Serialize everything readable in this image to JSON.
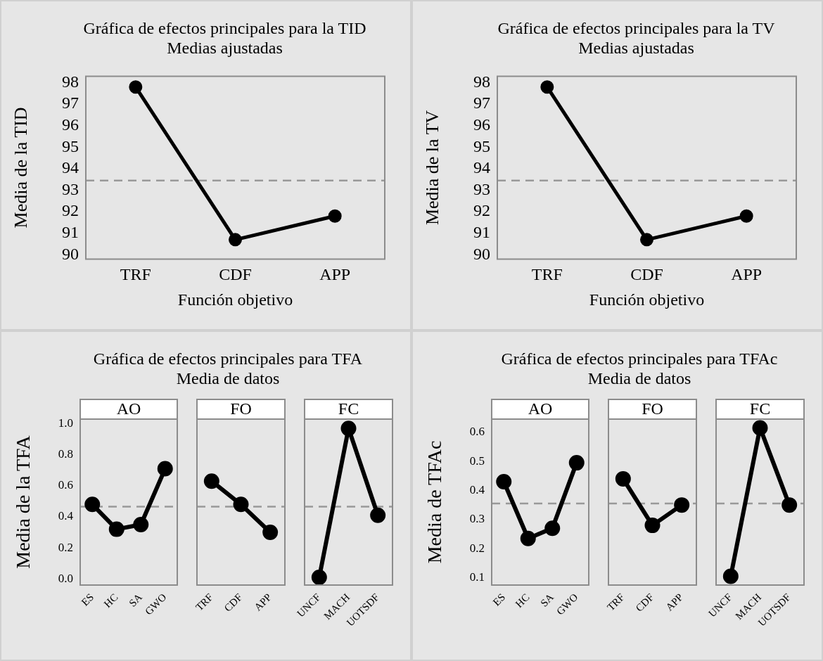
{
  "chart_data": [
    {
      "type": "line",
      "title": "Gráfica de efectos principales para la TID",
      "subtitle": "Medias ajustadas",
      "xlabel": "Función objetivo",
      "ylabel": "Media de la TID",
      "categories": [
        "TRF",
        "CDF",
        "APP"
      ],
      "series": [
        {
          "color": "#000000",
          "values": [
            97.8,
            90.7,
            91.8
          ]
        }
      ],
      "ylim": [
        89.8,
        98.3
      ],
      "yticks": [
        90,
        91,
        92,
        93,
        94,
        95,
        96,
        97,
        98
      ],
      "ref_lines": [
        {
          "axis": "y",
          "value": 93.45,
          "color": "#999999",
          "line_style": "dashed"
        }
      ],
      "grid": false,
      "legend": false,
      "marker": "circle",
      "line_style": "solid"
    },
    {
      "type": "line",
      "title": "Gráfica de efectos principales para la TV",
      "subtitle": "Medias ajustadas",
      "xlabel": "Función objetivo",
      "ylabel": "Media de la TV",
      "categories": [
        "TRF",
        "CDF",
        "APP"
      ],
      "series": [
        {
          "color": "#000000",
          "values": [
            97.8,
            90.7,
            91.8
          ]
        }
      ],
      "ylim": [
        89.8,
        98.3
      ],
      "yticks": [
        90,
        91,
        92,
        93,
        94,
        95,
        96,
        97,
        98
      ],
      "ref_lines": [
        {
          "axis": "y",
          "value": 93.45,
          "color": "#999999",
          "line_style": "dashed"
        }
      ],
      "grid": false,
      "legend": false,
      "marker": "circle",
      "line_style": "solid"
    },
    {
      "type": "line",
      "x2label": "AO",
      "ylabel": "Media de la TFA",
      "categories": [
        "ES",
        "HC",
        "SA",
        "GWO"
      ],
      "series": [
        {
          "color": "#000000",
          "values": [
            0.48,
            0.32,
            0.35,
            0.71
          ]
        }
      ],
      "ylim": [
        -0.04,
        1.03
      ],
      "yticks": [
        {
          "value": 0,
          "label": "0.0"
        },
        0.2,
        0.4,
        0.6,
        0.8,
        {
          "value": 1,
          "label": "1.0"
        }
      ],
      "ref_lines": [
        {
          "axis": "y",
          "value": 0.465,
          "color": "#999999",
          "line_style": "dashed"
        }
      ],
      "grid": false,
      "legend": false,
      "marker": "circle",
      "line_style": "solid"
    },
    {
      "type": "line",
      "title": "Gráfica de efectos principales para TFA",
      "subtitle": "Media de datos",
      "x2label": "FO",
      "categories": [
        "TRF",
        "CDF",
        "APP"
      ],
      "series": [
        {
          "color": "#000000",
          "values": [
            0.63,
            0.48,
            0.3
          ]
        }
      ],
      "ylim": [
        -0.04,
        1.03
      ],
      "ref_lines": [
        {
          "axis": "y",
          "value": 0.465,
          "color": "#999999",
          "line_style": "dashed"
        }
      ],
      "grid": false,
      "legend": false,
      "marker": "circle",
      "line_style": "solid",
      "tick_labels": "x"
    },
    {
      "type": "line",
      "x2label": "FC",
      "categories": [
        "UNCF",
        "MACH",
        "UOTSDF"
      ],
      "series": [
        {
          "color": "#000000",
          "values": [
            0.01,
            0.97,
            0.41
          ]
        }
      ],
      "ylim": [
        -0.04,
        1.03
      ],
      "ref_lines": [
        {
          "axis": "y",
          "value": 0.465,
          "color": "#999999",
          "line_style": "dashed"
        }
      ],
      "grid": false,
      "legend": false,
      "marker": "circle",
      "line_style": "solid",
      "tick_labels": "x"
    },
    {
      "type": "line",
      "x2label": "AO",
      "ylabel": "Media de TFAc",
      "categories": [
        "ES",
        "HC",
        "SA",
        "GWO"
      ],
      "series": [
        {
          "color": "#000000",
          "values": [
            0.43,
            0.235,
            0.27,
            0.495
          ]
        }
      ],
      "ylim": [
        0.075,
        0.645
      ],
      "yticks": [
        0.1,
        0.2,
        0.3,
        0.4,
        0.5,
        0.6
      ],
      "ref_lines": [
        {
          "axis": "y",
          "value": 0.355,
          "color": "#999999",
          "line_style": "dashed"
        }
      ],
      "grid": false,
      "legend": false,
      "marker": "circle",
      "line_style": "solid"
    },
    {
      "type": "line",
      "title": "Gráfica de efectos principales para TFAc",
      "subtitle": "Media de datos",
      "x2label": "FO",
      "categories": [
        "TRF",
        "CDF",
        "APP"
      ],
      "series": [
        {
          "color": "#000000",
          "values": [
            0.44,
            0.28,
            0.35
          ]
        }
      ],
      "ylim": [
        0.075,
        0.645
      ],
      "ref_lines": [
        {
          "axis": "y",
          "value": 0.355,
          "color": "#999999",
          "line_style": "dashed"
        }
      ],
      "grid": false,
      "legend": false,
      "marker": "circle",
      "line_style": "solid",
      "tick_labels": "x"
    },
    {
      "type": "line",
      "x2label": "FC",
      "categories": [
        "UNCF",
        "MACH",
        "UOTSDF"
      ],
      "series": [
        {
          "color": "#000000",
          "values": [
            0.105,
            0.615,
            0.35
          ]
        }
      ],
      "ylim": [
        0.075,
        0.645
      ],
      "ref_lines": [
        {
          "axis": "y",
          "value": 0.355,
          "color": "#999999",
          "line_style": "dashed"
        }
      ],
      "grid": false,
      "legend": false,
      "marker": "circle",
      "line_style": "solid",
      "tick_labels": "x"
    }
  ]
}
